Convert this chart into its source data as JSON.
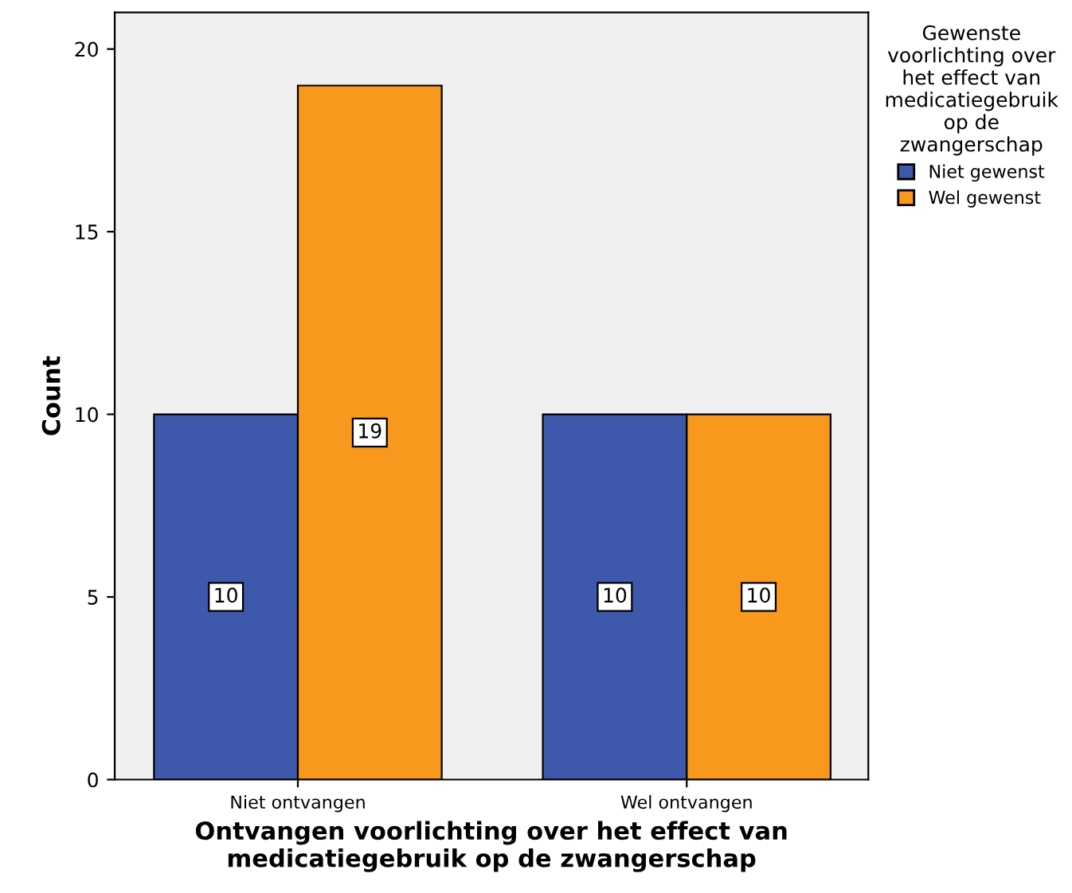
{
  "chart_data": {
    "type": "bar",
    "xlabel": "Ontvangen voorlichting over het effect van\nmedicatiegebruik op de zwangerschap",
    "ylabel": "Count",
    "legend_title": "Gewenste\nvoorlichting over\nhet effect van\nmedicatiegebruik\nop de\nzwangerschap",
    "categories": [
      "Niet ontvangen",
      "Wel ontvangen"
    ],
    "series": [
      {
        "name": "Niet gewenst",
        "color": "#3e58ac",
        "values": [
          10,
          10
        ]
      },
      {
        "name": "Wel gewenst",
        "color": "#f8981d",
        "values": [
          19,
          10
        ]
      }
    ],
    "ylim": [
      0,
      21
    ],
    "yticks": [
      0,
      5,
      10,
      15,
      20
    ],
    "grid": false,
    "legend": "top right",
    "data_labels": true
  }
}
